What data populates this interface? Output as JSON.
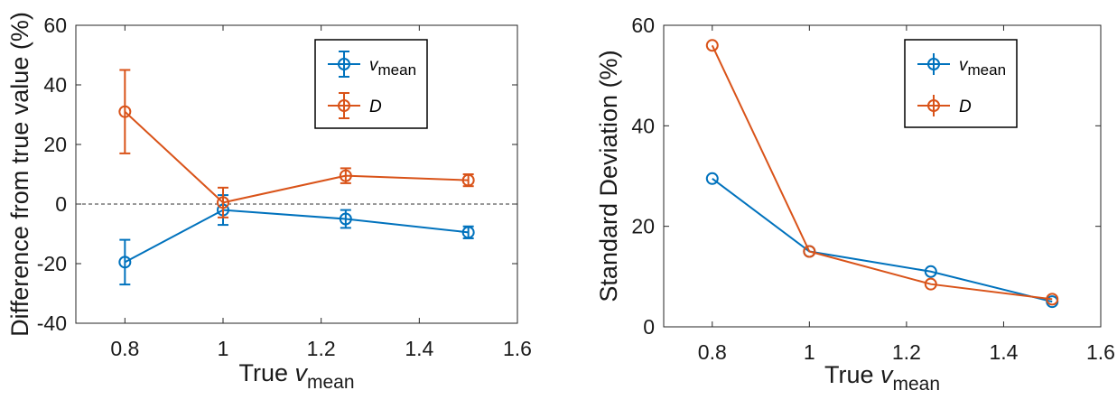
{
  "chart_data": [
    {
      "type": "line",
      "title": "",
      "xlabel": "True v_mean",
      "xlabel_main": "True ",
      "xlabel_var": "v",
      "xlabel_sub": "mean",
      "ylabel": "Difference from true value (%)",
      "xlim": [
        0.7,
        1.6
      ],
      "ylim": [
        -40,
        60
      ],
      "xticks": [
        0.8,
        1,
        1.2,
        1.4,
        1.6
      ],
      "xtick_labels": [
        "0.8",
        "1",
        "1.2",
        "1.4",
        "1.6"
      ],
      "yticks": [
        -40,
        -20,
        0,
        20,
        40,
        60
      ],
      "ytick_labels": [
        "-40",
        "-20",
        "0",
        "20",
        "40",
        "60"
      ],
      "reference_line": 0,
      "legend_position": "top-right",
      "series": [
        {
          "name": "v_mean",
          "legend_var": "v",
          "legend_sub": "mean",
          "color": "#0072BD",
          "x": [
            0.8,
            1,
            1.25,
            1.5
          ],
          "y": [
            -19.5,
            -2,
            -5,
            -9.5
          ],
          "err": [
            7.5,
            5,
            3,
            2
          ]
        },
        {
          "name": "D",
          "legend_var": "D",
          "legend_sub": "",
          "color": "#D95319",
          "x": [
            0.8,
            1,
            1.25,
            1.5
          ],
          "y": [
            31,
            0.5,
            9.5,
            8
          ],
          "err": [
            14,
            5,
            2.5,
            2
          ]
        }
      ]
    },
    {
      "type": "line",
      "title": "",
      "xlabel": "True v_mean",
      "xlabel_main": "True ",
      "xlabel_var": "v",
      "xlabel_sub": "mean",
      "ylabel": "Standard Deviation (%)",
      "xlim": [
        0.7,
        1.6
      ],
      "ylim": [
        0,
        60
      ],
      "xticks": [
        0.8,
        1,
        1.2,
        1.4,
        1.6
      ],
      "xtick_labels": [
        "0.8",
        "1",
        "1.2",
        "1.4",
        "1.6"
      ],
      "yticks": [
        0,
        20,
        40,
        60
      ],
      "ytick_labels": [
        "0",
        "20",
        "40",
        "60"
      ],
      "legend_position": "top-right",
      "series": [
        {
          "name": "v_mean",
          "legend_var": "v",
          "legend_sub": "mean",
          "color": "#0072BD",
          "x": [
            0.8,
            1,
            1.25,
            1.5
          ],
          "y": [
            29.5,
            15,
            11,
            5
          ]
        },
        {
          "name": "D",
          "legend_var": "D",
          "legend_sub": "",
          "color": "#D95319",
          "x": [
            0.8,
            1,
            1.25,
            1.5
          ],
          "y": [
            56,
            15,
            8.5,
            5.5
          ]
        }
      ]
    }
  ]
}
